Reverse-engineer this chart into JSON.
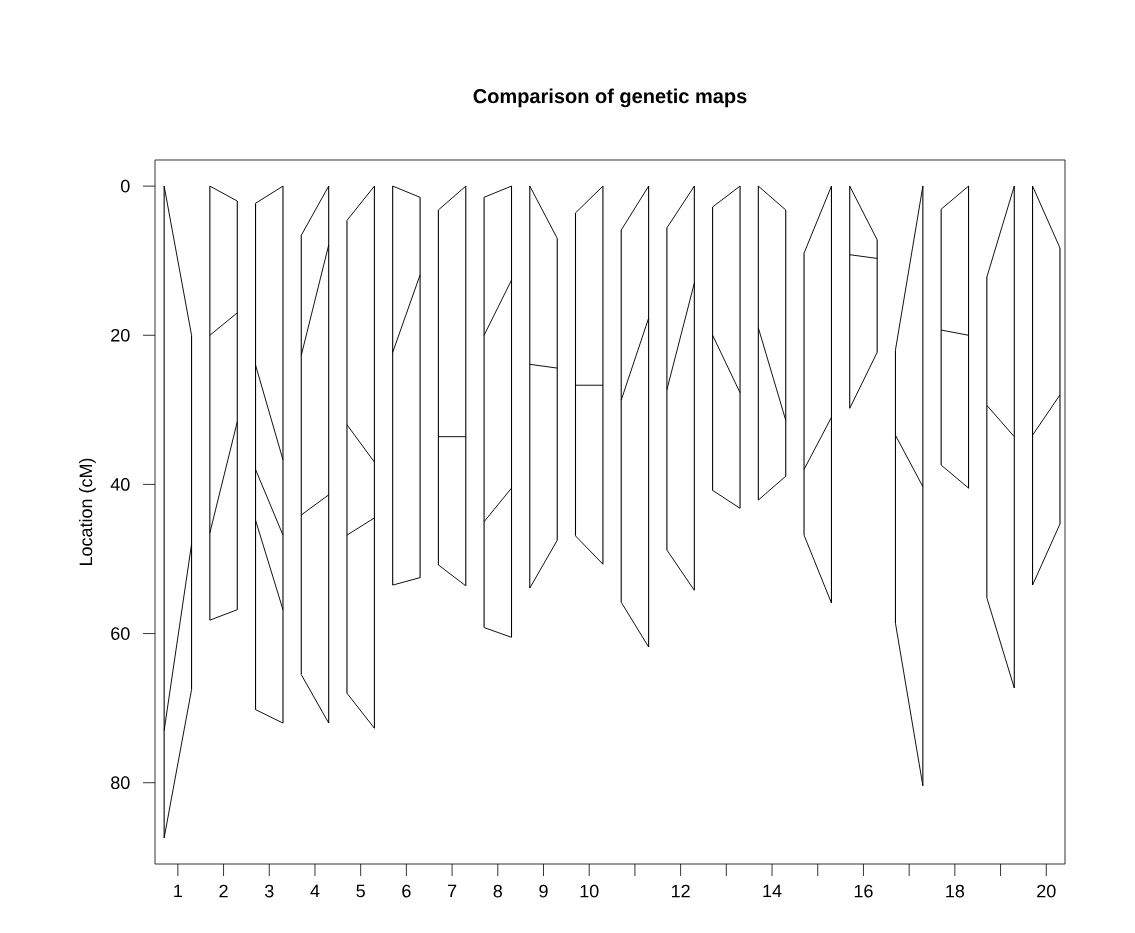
{
  "chart_data": {
    "type": "line",
    "title": "Comparison of genetic maps",
    "ylabel": "Location (cM)",
    "xlim": [
      0.5,
      20.41
    ],
    "ylim": [
      90.9,
      -3.5
    ],
    "yticks": [
      0,
      20,
      40,
      60,
      80
    ],
    "xticks": [
      1,
      2,
      3,
      4,
      5,
      6,
      7,
      8,
      9,
      10,
      {
        "value": 11,
        "label": null
      },
      12,
      {
        "value": 13,
        "label": null
      },
      14,
      {
        "value": 15,
        "label": null
      },
      16,
      {
        "value": 17,
        "label": null
      },
      18,
      {
        "value": 19,
        "label": null
      },
      20
    ],
    "series": [
      {
        "type": "bar",
        "color": "#000000",
        "x": [
          0.7,
          1.3,
          1.7,
          2.3,
          2.7,
          3.3,
          3.7,
          4.3,
          4.7,
          5.3,
          5.7,
          6.3,
          6.7,
          7.3,
          7.7,
          8.3,
          8.7,
          9.3,
          9.7,
          10.3,
          10.7,
          11.3,
          11.7,
          12.3,
          12.7,
          13.3,
          13.7,
          14.3,
          14.7,
          15.3,
          15.7,
          16.3,
          16.7,
          17.3,
          17.7,
          18.3,
          18.7,
          19.3,
          19.7,
          20.3
        ],
        "base": [
          0,
          20,
          0,
          2,
          2.3,
          0,
          6.6,
          0,
          4.6,
          0,
          0,
          1.5,
          3.2,
          0,
          1.5,
          0,
          0,
          7,
          3.6,
          0,
          5.9,
          0,
          5.6,
          0,
          2.8,
          0,
          0,
          3.2,
          9,
          0,
          0,
          7.2,
          22,
          0,
          3.1,
          0,
          12.2,
          0,
          0,
          8.3
        ],
        "values": [
          87.4,
          47.5,
          58.2,
          54.8,
          67.9,
          72,
          58.9,
          72,
          63.4,
          72.7,
          53.5,
          51,
          47.6,
          53.6,
          57.7,
          60.5,
          53.9,
          40.5,
          43.3,
          50.7,
          49.9,
          61.8,
          43.2,
          54.2,
          38,
          43.2,
          42.1,
          35.7,
          37.8,
          55.9,
          29.8,
          15.1,
          36.6,
          80.4,
          34.3,
          40.5,
          43,
          67.3,
          53.5,
          37
        ]
      },
      {
        "color": "#000000",
        "x": [
          0.7,
          1.3
        ],
        "values": [
          0,
          20
        ]
      },
      {
        "color": "#000000",
        "x": [
          0.7,
          1.3
        ],
        "values": [
          73,
          48
        ]
      },
      {
        "color": "#000000",
        "x": [
          0.7,
          1.3
        ],
        "values": [
          87.4,
          67.5
        ]
      },
      {
        "color": "#000000",
        "x": [
          1.7,
          2.3
        ],
        "values": [
          0,
          2
        ]
      },
      {
        "color": "#000000",
        "x": [
          1.7,
          2.3
        ],
        "values": [
          20,
          17
        ]
      },
      {
        "color": "#000000",
        "x": [
          1.7,
          2.3
        ],
        "values": [
          46.5,
          31.6
        ]
      },
      {
        "color": "#000000",
        "x": [
          1.7,
          2.3
        ],
        "values": [
          58.2,
          56.8
        ]
      },
      {
        "color": "#000000",
        "x": [
          2.7,
          3.3
        ],
        "values": [
          2.3,
          0
        ]
      },
      {
        "color": "#000000",
        "x": [
          2.7,
          3.3
        ],
        "values": [
          24,
          36.7
        ]
      },
      {
        "color": "#000000",
        "x": [
          2.7,
          3.3
        ],
        "values": [
          38,
          46.8
        ]
      },
      {
        "color": "#000000",
        "x": [
          2.7,
          3.3
        ],
        "values": [
          44.8,
          56.8
        ]
      },
      {
        "color": "#000000",
        "x": [
          2.7,
          3.3
        ],
        "values": [
          70.2,
          72
        ]
      },
      {
        "color": "#000000",
        "x": [
          3.7,
          4.3
        ],
        "values": [
          6.6,
          0
        ]
      },
      {
        "color": "#000000",
        "x": [
          3.7,
          4.3
        ],
        "values": [
          22.7,
          7.9
        ]
      },
      {
        "color": "#000000",
        "x": [
          3.7,
          4.3
        ],
        "values": [
          44.1,
          41.4
        ]
      },
      {
        "color": "#000000",
        "x": [
          3.7,
          4.3
        ],
        "values": [
          65.5,
          72
        ]
      },
      {
        "color": "#000000",
        "x": [
          4.7,
          5.3
        ],
        "values": [
          4.6,
          0
        ]
      },
      {
        "color": "#000000",
        "x": [
          4.7,
          5.3
        ],
        "values": [
          32,
          37
        ]
      },
      {
        "color": "#000000",
        "x": [
          4.7,
          5.3
        ],
        "values": [
          46.8,
          44.5
        ]
      },
      {
        "color": "#000000",
        "x": [
          4.7,
          5.3
        ],
        "values": [
          68,
          72.7
        ]
      },
      {
        "color": "#000000",
        "x": [
          5.7,
          6.3
        ],
        "values": [
          0,
          1.5
        ]
      },
      {
        "color": "#000000",
        "x": [
          5.7,
          6.3
        ],
        "values": [
          22.3,
          11.9
        ]
      },
      {
        "color": "#000000",
        "x": [
          5.7,
          6.3
        ],
        "values": [
          53.5,
          52.5
        ]
      },
      {
        "color": "#000000",
        "x": [
          6.7,
          7.3
        ],
        "values": [
          3.2,
          0
        ]
      },
      {
        "color": "#000000",
        "x": [
          6.7,
          7.3
        ],
        "values": [
          33.6,
          33.6
        ]
      },
      {
        "color": "#000000",
        "x": [
          6.7,
          7.3
        ],
        "values": [
          50.8,
          53.6
        ]
      },
      {
        "color": "#000000",
        "x": [
          7.7,
          8.3
        ],
        "values": [
          1.5,
          0
        ]
      },
      {
        "color": "#000000",
        "x": [
          7.7,
          8.3
        ],
        "values": [
          20,
          12.6
        ]
      },
      {
        "color": "#000000",
        "x": [
          7.7,
          8.3
        ],
        "values": [
          45,
          40.5
        ]
      },
      {
        "color": "#000000",
        "x": [
          7.7,
          8.3
        ],
        "values": [
          59.2,
          60.5
        ]
      },
      {
        "color": "#000000",
        "x": [
          8.7,
          9.3
        ],
        "values": [
          0,
          7
        ]
      },
      {
        "color": "#000000",
        "x": [
          8.7,
          9.3
        ],
        "values": [
          23.9,
          24.4
        ]
      },
      {
        "color": "#000000",
        "x": [
          8.7,
          9.3
        ],
        "values": [
          53.9,
          47.5
        ]
      },
      {
        "color": "#000000",
        "x": [
          9.7,
          10.3
        ],
        "values": [
          3.6,
          0
        ]
      },
      {
        "color": "#000000",
        "x": [
          9.7,
          10.3
        ],
        "values": [
          26.7,
          26.7
        ]
      },
      {
        "color": "#000000",
        "x": [
          9.7,
          10.3
        ],
        "values": [
          46.9,
          50.7
        ]
      },
      {
        "color": "#000000",
        "x": [
          10.7,
          11.3
        ],
        "values": [
          5.9,
          0
        ]
      },
      {
        "color": "#000000",
        "x": [
          10.7,
          11.3
        ],
        "values": [
          28.7,
          17.7
        ]
      },
      {
        "color": "#000000",
        "x": [
          10.7,
          11.3
        ],
        "values": [
          55.8,
          61.8
        ]
      },
      {
        "color": "#000000",
        "x": [
          11.7,
          12.3
        ],
        "values": [
          5.6,
          0
        ]
      },
      {
        "color": "#000000",
        "x": [
          11.7,
          12.3
        ],
        "values": [
          27.3,
          13
        ]
      },
      {
        "color": "#000000",
        "x": [
          11.7,
          12.3
        ],
        "values": [
          48.8,
          54.2
        ]
      },
      {
        "color": "#000000",
        "x": [
          12.7,
          13.3
        ],
        "values": [
          2.8,
          0
        ]
      },
      {
        "color": "#000000",
        "x": [
          12.7,
          13.3
        ],
        "values": [
          20,
          27.7
        ]
      },
      {
        "color": "#000000",
        "x": [
          12.7,
          13.3
        ],
        "values": [
          40.8,
          43.2
        ]
      },
      {
        "color": "#000000",
        "x": [
          13.7,
          14.3
        ],
        "values": [
          0,
          3.2
        ]
      },
      {
        "color": "#000000",
        "x": [
          13.7,
          14.3
        ],
        "values": [
          19,
          31.4
        ]
      },
      {
        "color": "#000000",
        "x": [
          13.7,
          14.3
        ],
        "values": [
          42.1,
          38.9
        ]
      },
      {
        "color": "#000000",
        "x": [
          14.7,
          15.3
        ],
        "values": [
          9,
          0
        ]
      },
      {
        "color": "#000000",
        "x": [
          14.7,
          15.3
        ],
        "values": [
          38,
          31
        ]
      },
      {
        "color": "#000000",
        "x": [
          14.7,
          15.3
        ],
        "values": [
          46.8,
          55.9
        ]
      },
      {
        "color": "#000000",
        "x": [
          15.7,
          16.3
        ],
        "values": [
          0,
          7.2
        ]
      },
      {
        "color": "#000000",
        "x": [
          15.7,
          16.3
        ],
        "values": [
          9.2,
          9.7
        ]
      },
      {
        "color": "#000000",
        "x": [
          15.7,
          16.3
        ],
        "values": [
          29.8,
          22.3
        ]
      },
      {
        "color": "#000000",
        "x": [
          16.7,
          17.3
        ],
        "values": [
          22,
          0
        ]
      },
      {
        "color": "#000000",
        "x": [
          16.7,
          17.3
        ],
        "values": [
          33.4,
          40.3
        ]
      },
      {
        "color": "#000000",
        "x": [
          16.7,
          17.3
        ],
        "values": [
          58.6,
          80.4
        ]
      },
      {
        "color": "#000000",
        "x": [
          17.7,
          18.3
        ],
        "values": [
          3.1,
          0
        ]
      },
      {
        "color": "#000000",
        "x": [
          17.7,
          18.3
        ],
        "values": [
          19.3,
          20
        ]
      },
      {
        "color": "#000000",
        "x": [
          17.7,
          18.3
        ],
        "values": [
          37.4,
          40.5
        ]
      },
      {
        "color": "#000000",
        "x": [
          18.7,
          19.3
        ],
        "values": [
          12.2,
          0
        ]
      },
      {
        "color": "#000000",
        "x": [
          18.7,
          19.3
        ],
        "values": [
          29.4,
          33.6
        ]
      },
      {
        "color": "#000000",
        "x": [
          18.7,
          19.3
        ],
        "values": [
          55.2,
          67.3
        ]
      },
      {
        "color": "#000000",
        "x": [
          19.7,
          20.3
        ],
        "values": [
          0,
          8.3
        ]
      },
      {
        "color": "#000000",
        "x": [
          19.7,
          20.3
        ],
        "values": [
          33.4,
          28
        ]
      },
      {
        "color": "#000000",
        "x": [
          19.7,
          20.3
        ],
        "values": [
          53.5,
          45.3
        ]
      }
    ]
  }
}
